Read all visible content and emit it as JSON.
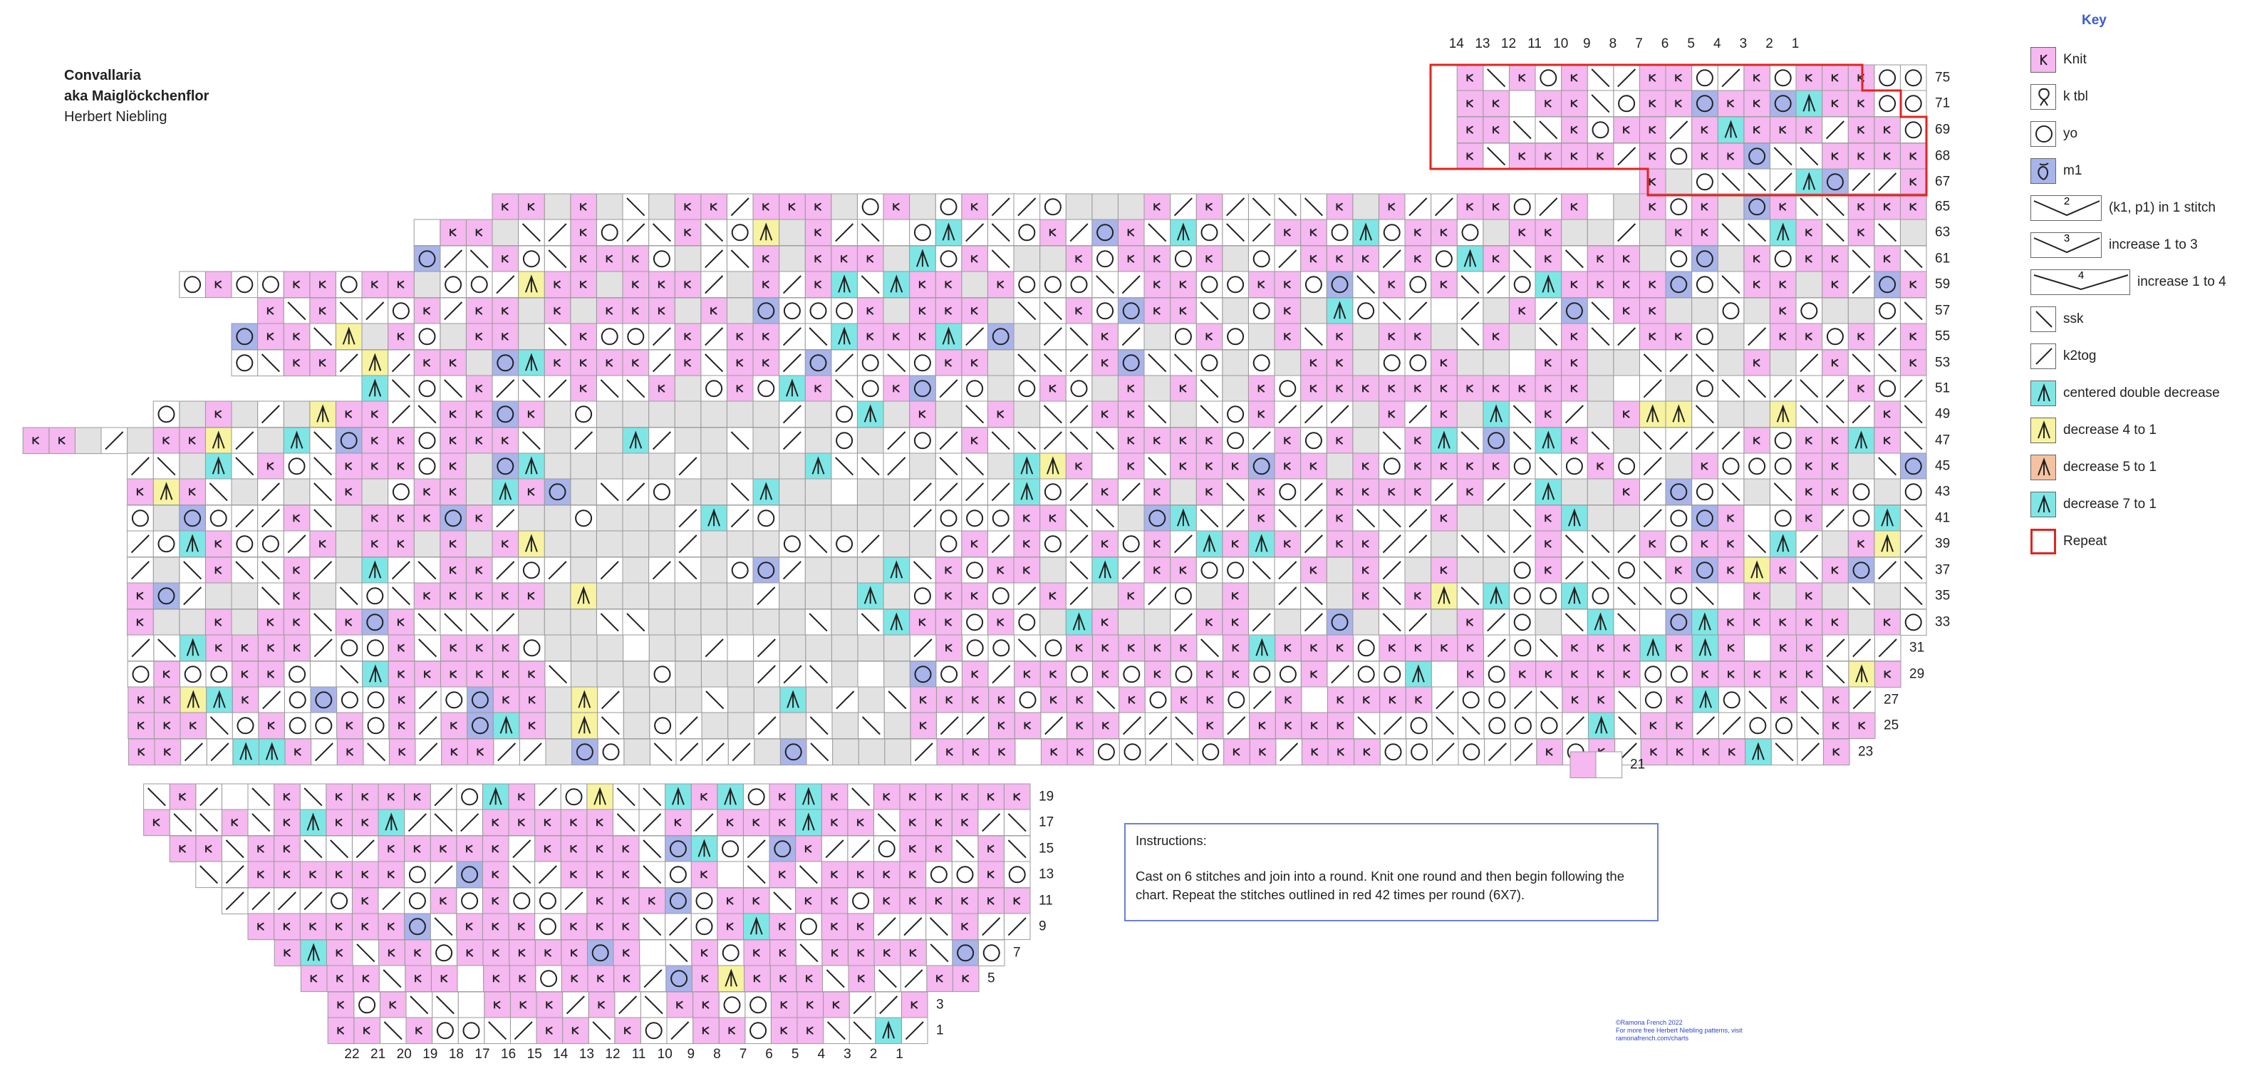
{
  "pattern": {
    "title_line1": "Convallaria",
    "title_line2": "aka Maiglöckchenflor",
    "author": "Herbert Niebling"
  },
  "top_column_numbers": [
    "14",
    "13",
    "12",
    "11",
    "10",
    "9",
    "8",
    "7",
    "6",
    "5",
    "4",
    "3",
    "2",
    "1"
  ],
  "bottom_column_numbers": [
    "22",
    "21",
    "20",
    "19",
    "18",
    "17",
    "16",
    "15",
    "14",
    "13",
    "12",
    "11",
    "10",
    "9",
    "8",
    "7",
    "6",
    "5",
    "4",
    "3",
    "2",
    "1"
  ],
  "row_numbers": [
    "75",
    "71",
    "69",
    "68",
    "67",
    "65",
    "63",
    "61",
    "59",
    "57",
    "55",
    "53",
    "51",
    "49",
    "47",
    "45",
    "43",
    "41",
    "39",
    "37",
    "35",
    "33",
    "31",
    "29",
    "27",
    "25",
    "23",
    "21",
    "19",
    "17",
    "15",
    "13",
    "11",
    "9",
    "7",
    "5",
    "3",
    "1"
  ],
  "key": {
    "title": "Key",
    "items": [
      {
        "symbol": "knit",
        "label": "Knit",
        "color": "#f5b8f0"
      },
      {
        "symbol": "ktbl",
        "label": "k tbl",
        "color": "#ffffff"
      },
      {
        "symbol": "yo",
        "label": "yo",
        "color": "#ffffff"
      },
      {
        "symbol": "m1",
        "label": "m1",
        "color": "#a8b4ea"
      },
      {
        "symbol": "k1p1",
        "label": "(k1, p1) in 1 stitch",
        "glyph": "2",
        "color": "#ffffff"
      },
      {
        "symbol": "inc3",
        "label": "increase 1 to 3",
        "glyph": "3",
        "color": "#ffffff"
      },
      {
        "symbol": "inc4",
        "label": "increase 1 to 4",
        "glyph": "4",
        "color": "#ffffff"
      },
      {
        "symbol": "ssk",
        "label": "ssk",
        "color": "#ffffff"
      },
      {
        "symbol": "k2tog",
        "label": "k2tog",
        "color": "#ffffff"
      },
      {
        "symbol": "cdd",
        "label": "centered double decrease",
        "color": "#7fe6e6"
      },
      {
        "symbol": "dec4",
        "label": "decrease 4 to 1",
        "color": "#f7f3a0"
      },
      {
        "symbol": "dec5",
        "label": "decrease 5 to 1",
        "color": "#f4c2a0"
      },
      {
        "symbol": "dec7",
        "label": "decrease 7 to 1",
        "color": "#7fe6e6"
      },
      {
        "symbol": "repeat",
        "label": "Repeat",
        "color": "#e2241f"
      }
    ]
  },
  "instructions": {
    "heading": "Instructions:",
    "body": "Cast on 6 stitches and join into a round. Knit one round and then begin following the chart. Repeat the stitches outlined in red 42 times per round (6X7)."
  },
  "credit": {
    "line1": "©Ramona French 2022",
    "line2": "For more free Herbert Niebling patterns, visit",
    "line3": "ramonafrench.com/charts"
  },
  "colors": {
    "knit": "#f5b8f0",
    "m1": "#a8b4ea",
    "cdd": "#7fe6e6",
    "dec4": "#f7f3a0",
    "dec5": "#f4c2a0",
    "no_stitch": "#e2e2e2",
    "grid": "#9a9a9a",
    "repeat": "#e2241f",
    "accent": "#3a5bd6"
  }
}
